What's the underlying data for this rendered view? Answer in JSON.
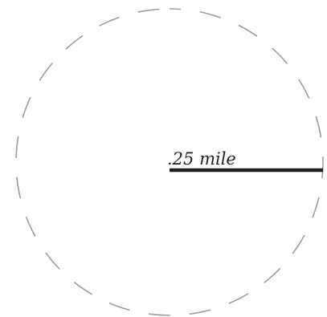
{
  "diagram": {
    "radius_label": ".25 mile"
  },
  "colors": {
    "circle_stroke": "#9d9d9d",
    "radius_line": "#231f20",
    "background": "#ffffff"
  }
}
